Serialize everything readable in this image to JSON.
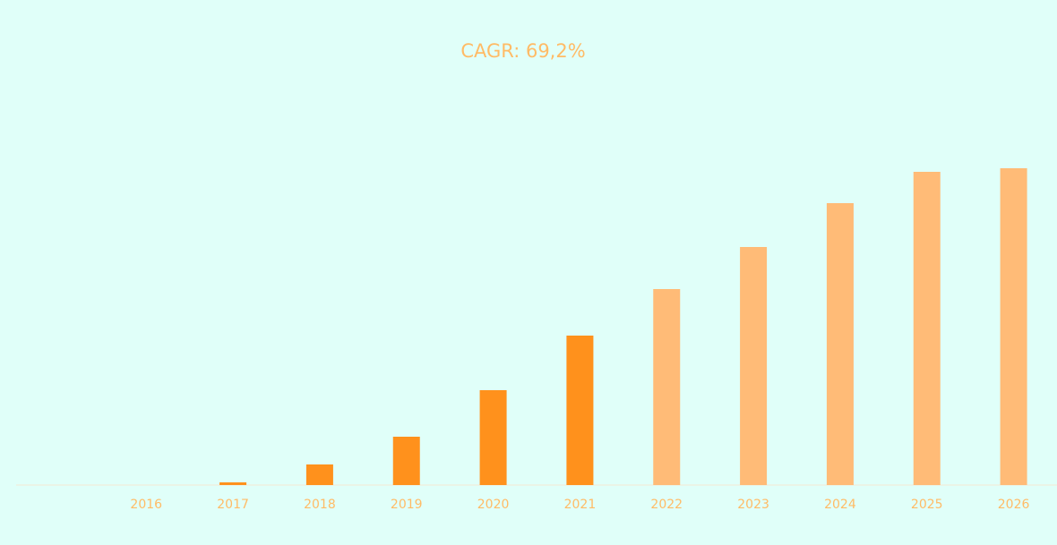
{
  "chart_data": {
    "type": "bar",
    "title": "CAGR: 69,2%",
    "categories": [
      null,
      "2016",
      "2017",
      "2018",
      "2019",
      "2020",
      "2021",
      "2022",
      "2023",
      "2024",
      "2025",
      "2026"
    ],
    "values": [
      null,
      0,
      3,
      23,
      54,
      106,
      167,
      219,
      266,
      315,
      350,
      354
    ],
    "colors": [
      null,
      "#ff911c",
      "#ff911c",
      "#ff911c",
      "#ff911c",
      "#ff911c",
      "#ff911c",
      "#ffbb77",
      "#ffbb77",
      "#ffbb77",
      "#ffbb77",
      "#ffbb77"
    ],
    "ylim": [
      0,
      400
    ]
  }
}
